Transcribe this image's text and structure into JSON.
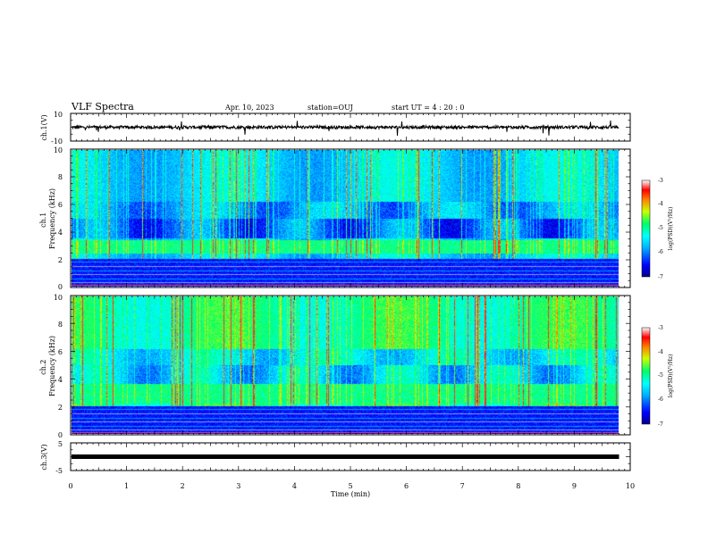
{
  "header": {
    "title": "VLF Spectra",
    "date": "Apr. 10, 2023",
    "station": "station=OUJ",
    "start_ut": "start UT =  4 : 20 : 0"
  },
  "colors": {
    "spectrum_scale": [
      "#00008b",
      "#0000ff",
      "#00b0ff",
      "#00ffff",
      "#00ff66",
      "#66ff00",
      "#ffff00",
      "#ff8000",
      "#ff0000"
    ],
    "waveform": "#000000",
    "axes": "#000000"
  },
  "chart_data": [
    {
      "type": "line",
      "name": "channel-1-waveform",
      "ylabel": "ch.1(V)",
      "ylim": [
        -10,
        10
      ],
      "yticks": [
        "10",
        "-10"
      ],
      "baseline": 0,
      "xlim": [
        0,
        10
      ]
    },
    {
      "type": "heatmap",
      "name": "channel-1-spectrogram",
      "ylabel": "ch.1\nFrequency (kHz)",
      "ylim": [
        0,
        10
      ],
      "yticks": [
        "0",
        "2",
        "4",
        "6",
        "8",
        "10"
      ],
      "xlim": [
        0,
        10
      ],
      "data_end_min": 9.8,
      "colorbar": {
        "label": "log(PSD)(V²/Hz)",
        "range": [
          -7,
          -3
        ],
        "ticks": [
          "-3",
          "-4",
          "-5",
          "-6",
          "-7"
        ]
      },
      "emission_band_khz": [
        2.4,
        3.4
      ],
      "hum_lines_khz": [
        0.3,
        0.6,
        0.9,
        1.2,
        1.5,
        1.8
      ]
    },
    {
      "type": "heatmap",
      "name": "channel-2-spectrogram",
      "ylabel": "ch.2\nFrequency (kHz)",
      "ylim": [
        0,
        10
      ],
      "yticks": [
        "0",
        "2",
        "4",
        "6",
        "8",
        "10"
      ],
      "xlim": [
        0,
        10
      ],
      "data_end_min": 9.8,
      "colorbar": {
        "label": "log(PSD)(V²/Hz)",
        "range": [
          -7,
          -3
        ],
        "ticks": [
          "-3",
          "-4",
          "-5",
          "-6",
          "-7"
        ]
      },
      "emission_band_khz": [
        2.2,
        3.6
      ],
      "hum_lines_khz": [
        0.3,
        0.6,
        0.9,
        1.2,
        1.5,
        1.8
      ]
    },
    {
      "type": "line",
      "name": "channel-3-waveform",
      "ylabel": "ch.3(V)",
      "ylim": [
        -5,
        5
      ],
      "yticks": [
        "5",
        "-5"
      ],
      "baseline": 0,
      "xlim": [
        0,
        10
      ],
      "xlabel": "Time (min)",
      "xticks": [
        "0",
        "1",
        "2",
        "3",
        "4",
        "5",
        "6",
        "7",
        "8",
        "9",
        "10"
      ]
    }
  ]
}
